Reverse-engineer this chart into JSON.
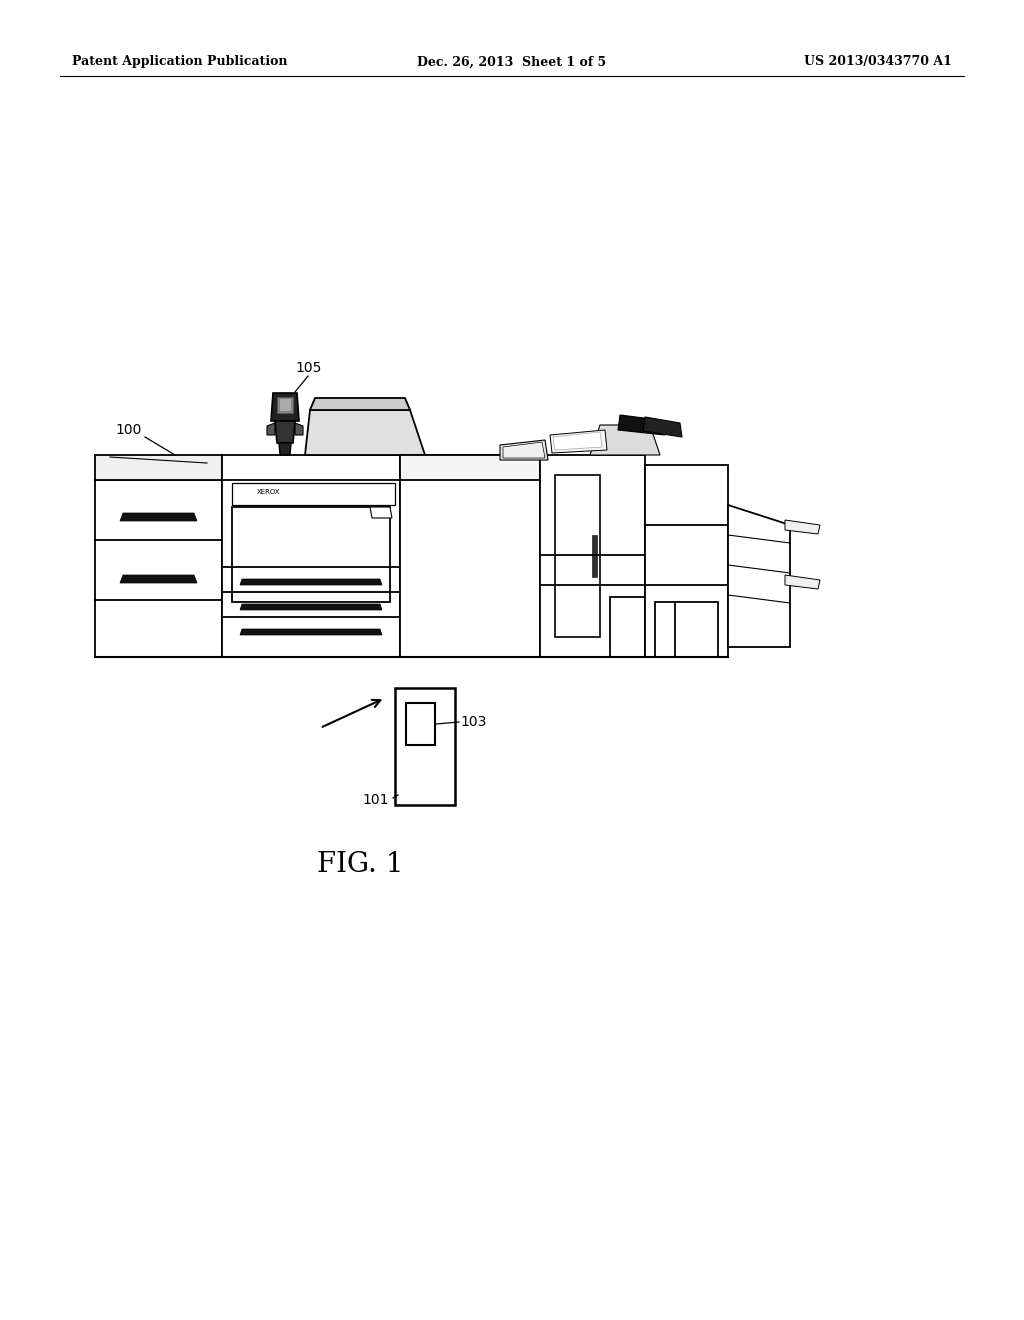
{
  "background_color": "#ffffff",
  "header_left": "Patent Application Publication",
  "header_center": "Dec. 26, 2013  Sheet 1 of 5",
  "header_right": "US 2013/0343770 A1",
  "fig_label": "FIG. 1",
  "label_100": "100",
  "label_105": "105",
  "label_101": "101",
  "label_103": "103",
  "line_color": "#000000",
  "text_color": "#000000",
  "lw": 1.3,
  "header_fontsize": 9,
  "label_fontsize": 10,
  "fig_fontsize": 20
}
